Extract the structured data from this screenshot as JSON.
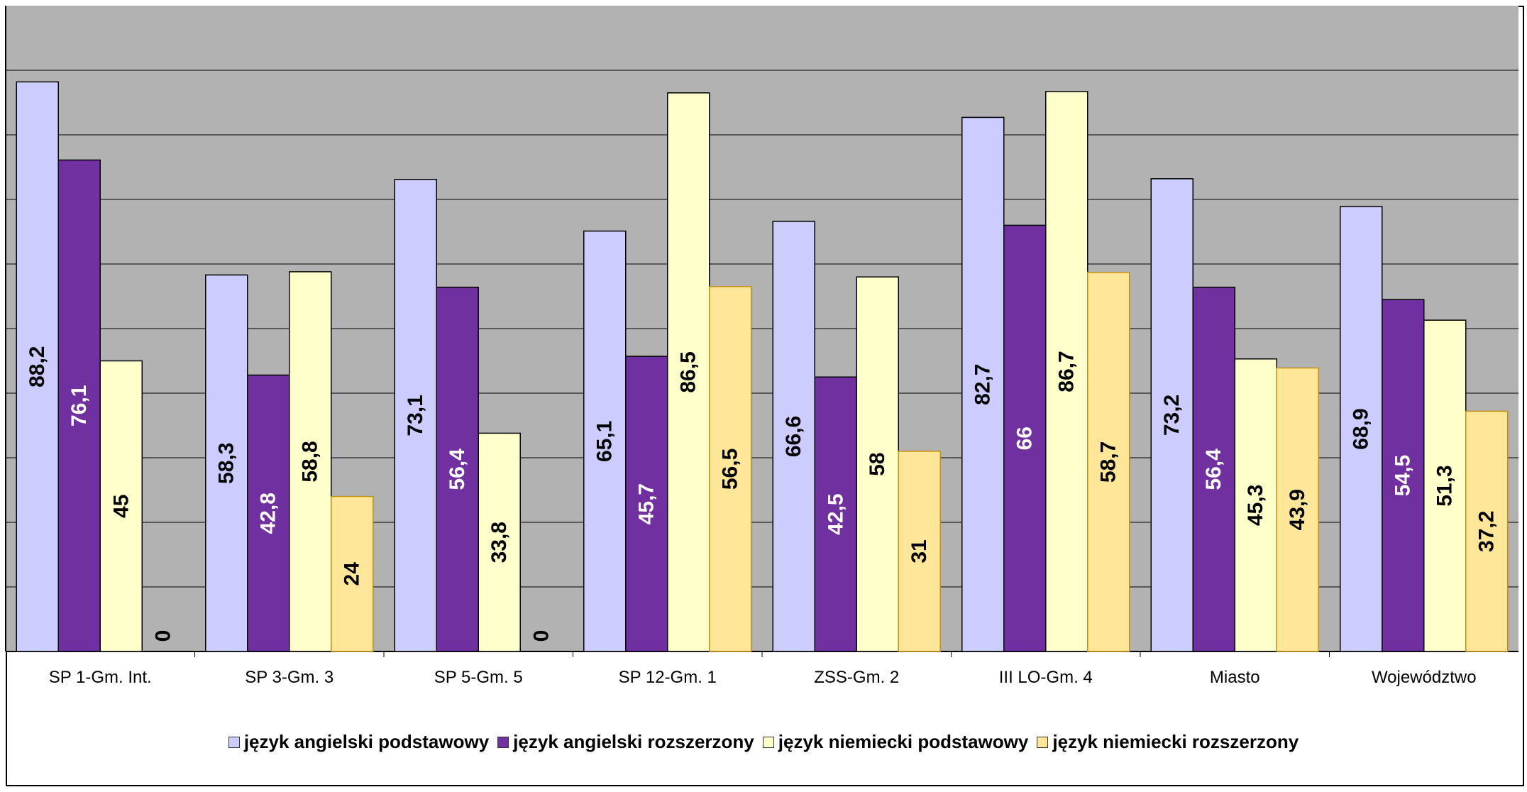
{
  "chart_data": {
    "type": "bar",
    "title": "",
    "xlabel": "",
    "ylabel": "",
    "ylim": [
      0,
      100
    ],
    "grid": true,
    "legend_position": "bottom",
    "categories": [
      "SP 1-Gm. Int.",
      "SP 3-Gm. 3",
      "SP 5-Gm. 5",
      "SP 12-Gm. 1",
      "ZSS-Gm. 2",
      "III LO-Gm. 4",
      "Miasto",
      "Województwo"
    ],
    "series": [
      {
        "name": "język angielski podstawowy",
        "color": "#CCCCFF",
        "label_color": "#000000",
        "values": [
          88.2,
          58.3,
          73.1,
          65.1,
          66.6,
          82.7,
          73.2,
          68.9
        ],
        "labels": [
          "88,2",
          "58,3",
          "73,1",
          "65,1",
          "66,6",
          "82,7",
          "73,2",
          "68,9"
        ]
      },
      {
        "name": "język angielski rozszerzony",
        "color": "#7030A0",
        "label_color": "#FFFFFF",
        "values": [
          76.1,
          42.8,
          56.4,
          45.7,
          42.5,
          66,
          56.4,
          54.5
        ],
        "labels": [
          "76,1",
          "42,8",
          "56,4",
          "45,7",
          "42,5",
          "66",
          "56,4",
          "54,5"
        ]
      },
      {
        "name": "język niemiecki podstawowy",
        "color": "#FFFFCC",
        "label_color": "#000000",
        "values": [
          45,
          58.8,
          33.8,
          86.5,
          58,
          86.7,
          45.3,
          51.3
        ],
        "labels": [
          "45",
          "58,8",
          "33,8",
          "86,5",
          "58",
          "86,7",
          "45,3",
          "51,3"
        ]
      },
      {
        "name": "język niemiecki rozszerzony",
        "color": "#FFE699",
        "label_color": "#000000",
        "values": [
          0,
          24,
          0,
          56.5,
          31,
          58.7,
          43.9,
          37.2
        ],
        "labels": [
          "0",
          "24",
          "0",
          "56,5",
          "31",
          "58,7",
          "43,9",
          "37,2"
        ]
      }
    ]
  }
}
